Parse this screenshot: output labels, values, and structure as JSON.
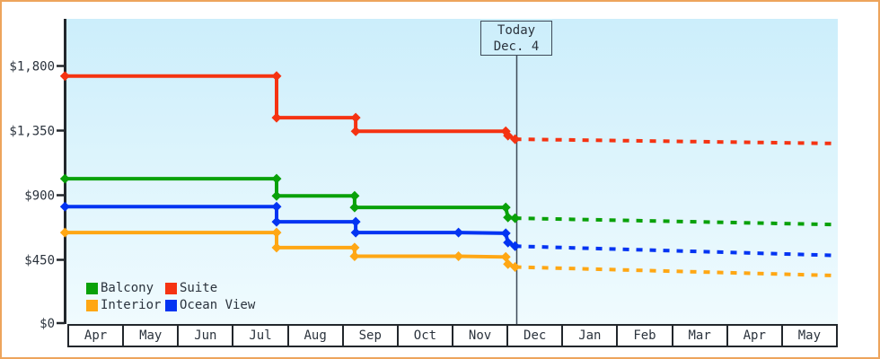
{
  "colors": {
    "frame_border": "#eda45c",
    "axis": "#22272c",
    "text": "#2b333d",
    "plot_bg_top": "#cceefb",
    "plot_bg_bottom": "#f0fbfe",
    "today_line": "#3e4a58"
  },
  "today_flag": {
    "line1": "Today",
    "line2": "Dec. 4"
  },
  "legend": {
    "order": [
      "Balcony",
      "Suite",
      "Interior",
      "Ocean View"
    ]
  },
  "chart_data": {
    "type": "line",
    "title": "",
    "xlabel": "",
    "ylabel": "",
    "x_axis_months": [
      "Apr",
      "May",
      "Jun",
      "Jul",
      "Aug",
      "Sep",
      "Oct",
      "Nov",
      "Dec",
      "Jan",
      "Feb",
      "Mar",
      "Apr",
      "May"
    ],
    "y_ticks": [
      {
        "label": "$1,800",
        "value": 1800
      },
      {
        "label": "$1,350",
        "value": 1350
      },
      {
        "label": "$900",
        "value": 900
      },
      {
        "label": "$450",
        "value": 450
      },
      {
        "label": "$0",
        "value": 0
      }
    ],
    "ylim": [
      0,
      1800
    ],
    "grid": false,
    "legend_position": "bottom-left",
    "today_line_month_position": 8.16,
    "note": "points are [months_after_Apr_1, price_usd]; dotted forecast extends from today to end of chart",
    "series": [
      {
        "name": "Interior",
        "color": "#ffa714",
        "points": [
          [
            -0.06,
            640
          ],
          [
            3.79,
            640
          ],
          [
            3.79,
            535
          ],
          [
            5.21,
            535
          ],
          [
            5.21,
            475
          ],
          [
            7.1,
            475
          ],
          [
            7.96,
            470
          ],
          [
            8.0,
            420
          ],
          [
            8.13,
            400
          ]
        ],
        "forecast": [
          [
            8.13,
            400
          ],
          [
            14,
            340
          ]
        ]
      },
      {
        "name": "Ocean View",
        "color": "#0334f2",
        "points": [
          [
            -0.06,
            820
          ],
          [
            3.79,
            820
          ],
          [
            3.79,
            715
          ],
          [
            5.23,
            715
          ],
          [
            5.23,
            640
          ],
          [
            7.1,
            640
          ],
          [
            7.96,
            635
          ],
          [
            8.0,
            570
          ],
          [
            8.13,
            545
          ]
        ],
        "forecast": [
          [
            8.13,
            545
          ],
          [
            14,
            480
          ]
        ]
      },
      {
        "name": "Balcony",
        "color": "#09a109",
        "points": [
          [
            -0.06,
            1015
          ],
          [
            3.79,
            1015
          ],
          [
            3.79,
            895
          ],
          [
            5.21,
            895
          ],
          [
            5.21,
            815
          ],
          [
            7.96,
            815
          ],
          [
            8.0,
            745
          ],
          [
            8.13,
            740
          ]
        ],
        "forecast": [
          [
            8.13,
            740
          ],
          [
            14,
            695
          ]
        ]
      },
      {
        "name": "Suite",
        "color": "#f53312",
        "points": [
          [
            -0.06,
            1730
          ],
          [
            3.79,
            1730
          ],
          [
            3.79,
            1440
          ],
          [
            5.23,
            1440
          ],
          [
            5.23,
            1345
          ],
          [
            7.96,
            1345
          ],
          [
            8.0,
            1315
          ],
          [
            8.13,
            1290
          ]
        ],
        "forecast": [
          [
            8.13,
            1290
          ],
          [
            14,
            1260
          ]
        ]
      }
    ]
  }
}
